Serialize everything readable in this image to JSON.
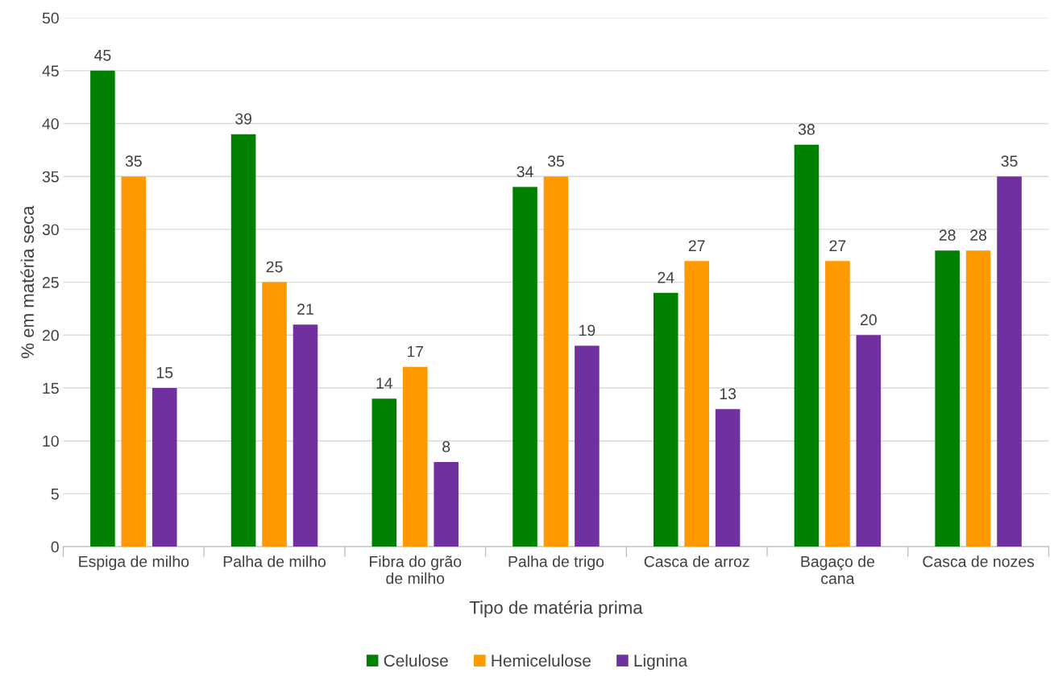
{
  "chart_data": {
    "type": "bar",
    "xlabel": "Tipo de matéria prima",
    "ylabel": "% em matéria seca",
    "categories": [
      "Espiga de milho",
      "Palha de milho",
      "Fibra do grão\nde milho",
      "Palha de trigo",
      "Casca de arroz",
      "Bagaço de\ncana",
      "Casca de nozes"
    ],
    "series": [
      {
        "name": "Celulose",
        "color": "#008000",
        "values": [
          45,
          39,
          14,
          34,
          24,
          38,
          28
        ]
      },
      {
        "name": "Hemicelulose",
        "color": "#ff9900",
        "values": [
          35,
          25,
          17,
          35,
          27,
          27,
          28
        ]
      },
      {
        "name": "Lignina",
        "color": "#7030a0",
        "values": [
          15,
          21,
          8,
          19,
          13,
          20,
          35
        ]
      }
    ],
    "ylim": [
      0,
      50
    ],
    "yticks": [
      0,
      5,
      10,
      15,
      20,
      25,
      30,
      35,
      40,
      45,
      50
    ],
    "grid": "y",
    "legend": "bottom",
    "data_labels": true
  }
}
